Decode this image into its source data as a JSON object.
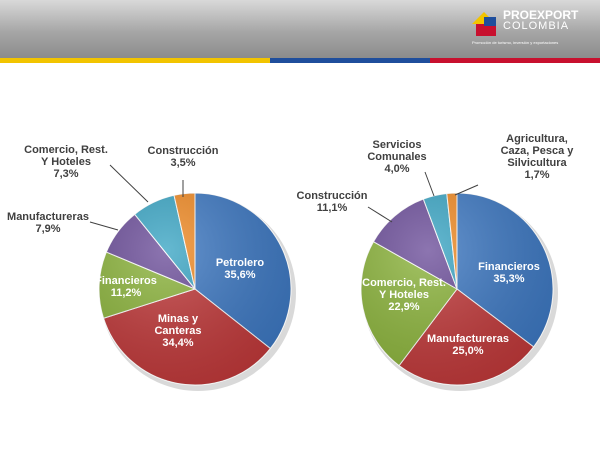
{
  "logo": {
    "name": "PROEXPORT",
    "sub": "COLOMBIA",
    "tagline": "Promoción de turismo, inversión y exportaciones"
  },
  "theme": {
    "stripe_colors": [
      "#f2c400",
      "#1f4e9c",
      "#c8102e"
    ],
    "slice_colors": {
      "blue": "#3d78c2",
      "red": "#c0393a",
      "green": "#8cb43c",
      "purple": "#6c4e9a",
      "teal": "#3aa5c4",
      "orange": "#f08a24"
    }
  },
  "chart_data": [
    {
      "type": "pie",
      "title": "",
      "slices": [
        {
          "label": "Petrolero",
          "value": 35.6,
          "value_text": "35,6%",
          "color": "#3d78c2"
        },
        {
          "label": "Minas y\nCanteras",
          "value": 34.4,
          "value_text": "34,4%",
          "color": "#c0393a"
        },
        {
          "label": "Financieros",
          "value": 11.2,
          "value_text": "11,2%",
          "color": "#8cb43c"
        },
        {
          "label": "Manufactureras",
          "value": 7.9,
          "value_text": "7,9%",
          "color": "#6c4e9a"
        },
        {
          "label": "Comercio, Rest.\nY Hoteles",
          "value": 7.3,
          "value_text": "7,3%",
          "color": "#3aa5c4"
        },
        {
          "label": "Construcción",
          "value": 3.5,
          "value_text": "3,5%",
          "color": "#f08a24"
        }
      ]
    },
    {
      "type": "pie",
      "title": "",
      "slices": [
        {
          "label": "Financieros",
          "value": 35.3,
          "value_text": "35,3%",
          "color": "#3d78c2"
        },
        {
          "label": "Manufactureras",
          "value": 25.0,
          "value_text": "25,0%",
          "color": "#c0393a"
        },
        {
          "label": "Comercio, Rest.\nY Hoteles",
          "value": 22.9,
          "value_text": "22,9%",
          "color": "#8cb43c"
        },
        {
          "label": "Construcción",
          "value": 11.1,
          "value_text": "11,1%",
          "color": "#6c4e9a"
        },
        {
          "label": "Servicios\nComunales",
          "value": 4.0,
          "value_text": "4,0%",
          "color": "#3aa5c4"
        },
        {
          "label": "Agricultura,\nCaza, Pesca y\nSilvicultura",
          "value": 1.7,
          "value_text": "1,7%",
          "color": "#f08a24"
        }
      ]
    }
  ]
}
